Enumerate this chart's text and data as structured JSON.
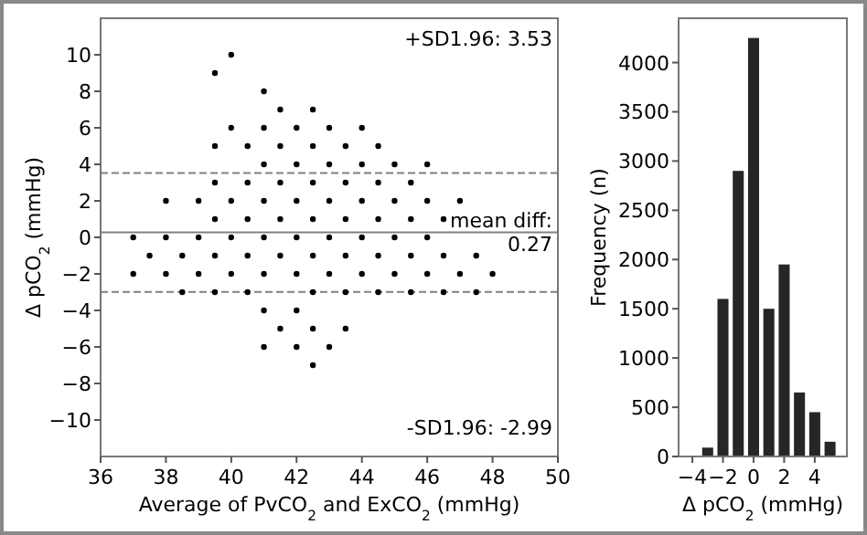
{
  "chart_data": [
    {
      "type": "scatter",
      "xlabel": "Average of PvCO$_{2}$ and ExCO$_{2}$ (mmHg)",
      "ylabel": "Δ pCO$_{2}$ (mmHg)",
      "marker": "circle",
      "grid": false,
      "series": [
        {
          "color": "#000000",
          "x": [
            40,
            39.5,
            41,
            41.5,
            42.5,
            40,
            41,
            42,
            43,
            44,
            39.5,
            40.5,
            41.5,
            42.5,
            43.5,
            44.5,
            41,
            42,
            43,
            44,
            45,
            46,
            39.5,
            40.5,
            41.5,
            42.5,
            43.5,
            44.5,
            45.5,
            38,
            39,
            40,
            41,
            42,
            43,
            44,
            45,
            46,
            47,
            39.5,
            40.5,
            41.5,
            42.5,
            43.5,
            44.5,
            45.5,
            46.5,
            37,
            38,
            39,
            40,
            41,
            42,
            43,
            44,
            45,
            46,
            37.5,
            38.5,
            39.5,
            40.5,
            41.5,
            42.5,
            43.5,
            44.5,
            45.5,
            46.5,
            47.5,
            37,
            38,
            39,
            40,
            41,
            42,
            43,
            44,
            45,
            46,
            47,
            48,
            38.5,
            39.5,
            40.5,
            42.5,
            43.5,
            44.5,
            45.5,
            46.5,
            47.5,
            41,
            42,
            41.5,
            42.5,
            43.5,
            41,
            42,
            43,
            42.5
          ],
          "values": [
            10,
            9,
            8,
            7,
            7,
            6,
            6,
            6,
            6,
            6,
            5,
            5,
            5,
            5,
            5,
            5,
            4,
            4,
            4,
            4,
            4,
            4,
            3,
            3,
            3,
            3,
            3,
            3,
            3,
            2,
            2,
            2,
            2,
            2,
            2,
            2,
            2,
            2,
            2,
            1,
            1,
            1,
            1,
            1,
            1,
            1,
            1,
            0,
            0,
            0,
            0,
            0,
            0,
            0,
            0,
            0,
            0,
            -1,
            -1,
            -1,
            -1,
            -1,
            -1,
            -1,
            -1,
            -1,
            -1,
            -1,
            -2,
            -2,
            -2,
            -2,
            -2,
            -2,
            -2,
            -2,
            -2,
            -2,
            -2,
            -2,
            -3,
            -3,
            -3,
            -3,
            -3,
            -3,
            -3,
            -3,
            -3,
            -4,
            -4,
            -5,
            -5,
            -5,
            -6,
            -6,
            -6,
            -7
          ]
        }
      ],
      "xlim": [
        36,
        50
      ],
      "xticks": [
        36,
        38,
        40,
        42,
        44,
        46,
        48,
        50
      ],
      "ylim": [
        -12,
        12
      ],
      "yticks": [
        -10,
        -8,
        -6,
        -4,
        -2,
        0,
        2,
        4,
        6,
        8,
        10
      ],
      "annotations": [
        "+SD1.96: 3.53",
        "-SD1.96: -2.99"
      ],
      "ref_lines": [
        {
          "axis": "y",
          "value": 3.53,
          "color": "#808080",
          "line_style": "dashed"
        },
        {
          "axis": "y",
          "value": 0.27,
          "label": "mean diff:\n0.27",
          "color": "#808080",
          "line_style": "solid"
        },
        {
          "axis": "y",
          "value": -2.99,
          "color": "#808080",
          "line_style": "dashed"
        }
      ]
    },
    {
      "type": "bar",
      "xlabel": "Δ pCO$_{2}$ (mmHg)",
      "ylabel": "Frequency (n)",
      "color": "#262626",
      "grid": false,
      "x": [
        -3,
        -2,
        -1,
        0,
        1,
        2,
        3,
        4,
        5
      ],
      "values": [
        90,
        1600,
        2900,
        4250,
        1500,
        1950,
        650,
        450,
        150
      ],
      "xlim": [
        -4.9,
        6.1
      ],
      "xticks": [
        {
          "value": -4,
          "label": "−4"
        },
        {
          "value": -2,
          "label": "−2"
        },
        0,
        2,
        4
      ],
      "ylim": [
        0,
        4450
      ],
      "yticks": [
        0,
        500,
        1000,
        1500,
        2000,
        2500,
        3000,
        3500,
        4000
      ]
    }
  ]
}
